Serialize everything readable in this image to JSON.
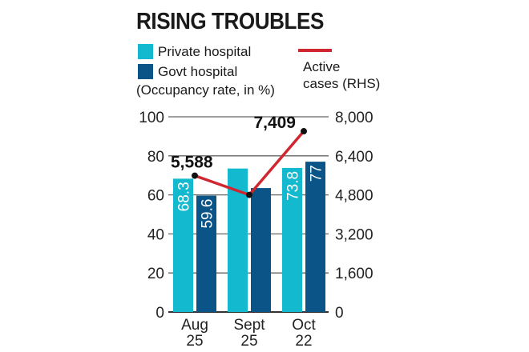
{
  "colors": {
    "private": "#12b9cf",
    "govt": "#0b5487",
    "line": "#d0262f",
    "grid": "#666666"
  },
  "title": "RISING TROUBLES",
  "legend": {
    "private": "Private hospital",
    "govt": "Govt hospital",
    "unit": "(Occupancy rate, in %)",
    "line_1": "Active",
    "line_2": "cases (RHS)"
  },
  "chart_data": {
    "type": "bar+line",
    "title": "RISING TROUBLES",
    "categories": [
      [
        "Aug",
        "25"
      ],
      [
        "Sept",
        "25"
      ],
      [
        "Oct",
        "22"
      ]
    ],
    "series": [
      {
        "name": "Private hospital",
        "axis": "left",
        "values": [
          68.3,
          73.5,
          73.8
        ],
        "labels": [
          "68.3",
          "",
          "73.8"
        ]
      },
      {
        "name": "Govt hospital",
        "axis": "left",
        "values": [
          59.6,
          63.5,
          77
        ],
        "labels": [
          "59.6",
          "",
          "77"
        ]
      },
      {
        "name": "Active cases (RHS)",
        "axis": "right",
        "values": [
          5588,
          4800,
          7409
        ],
        "labels": [
          "5,588",
          "",
          "7,409"
        ]
      }
    ],
    "ylim_left": [
      0,
      100
    ],
    "yticks_left": [
      "0",
      "20",
      "40",
      "60",
      "80",
      "100"
    ],
    "ylim_right": [
      0,
      8000
    ],
    "yticks_right": [
      "0",
      "1,600",
      "3,200",
      "4,800",
      "6,400",
      "8,000"
    ],
    "ylabel": "Occupancy rate, in %",
    "grid": true
  }
}
